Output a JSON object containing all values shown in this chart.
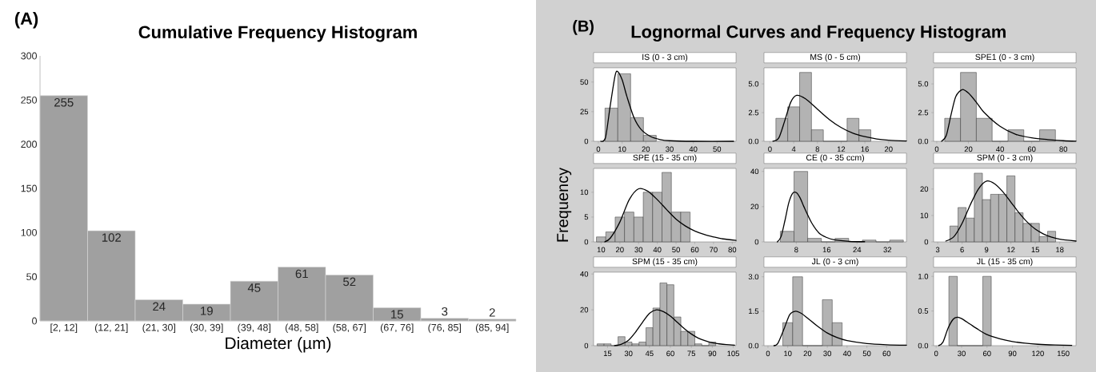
{
  "chart_data": [
    {
      "type": "bar",
      "title": "Cumulative Frequency Histogram",
      "annotations": [
        "(A)"
      ],
      "xlabel": "Diameter (µm)",
      "categories": [
        "[2, 12]",
        "(12, 21]",
        "(21, 30]",
        "(30, 39]",
        "(39, 48]",
        "(48, 58]",
        "(58, 67]",
        "(67, 76]",
        "(76, 85]",
        "(85, 94]"
      ],
      "values": [
        255,
        102,
        24,
        19,
        45,
        61,
        52,
        15,
        3,
        2
      ],
      "color": "#a0a0a0",
      "data_labels": true,
      "ylim": [
        0,
        300
      ],
      "yticks": [
        0,
        50,
        100,
        150,
        200,
        250,
        300
      ]
    },
    {
      "type": "histogram",
      "title": "IS (0 - 3 cm)",
      "annotations": [
        "(B)",
        "Lognormal Curves and Frequency Histogram"
      ],
      "bins": [
        2.8,
        8.2,
        13.6,
        19,
        24.4
      ],
      "series": [
        {
          "type": "histogram",
          "color": "#b3b3b3",
          "values": [
            28,
            57,
            20,
            5
          ]
        },
        {
          "type": "line",
          "color": "#000000",
          "x": [
            1,
            3,
            5,
            7,
            8,
            10,
            12,
            15,
            18,
            22,
            26,
            30,
            40,
            57
          ],
          "values": [
            0,
            3,
            30,
            55,
            59,
            52,
            38,
            20,
            10,
            4,
            1.5,
            0.5,
            0,
            0
          ]
        }
      ],
      "xlim": [
        -2,
        58
      ],
      "xticks": [
        0,
        10,
        20,
        30,
        40,
        50
      ],
      "ylim": [
        0,
        62
      ],
      "yticks": [
        0,
        25,
        50
      ]
    },
    {
      "type": "histogram",
      "title": "MS (0 - 5 cm)",
      "bins": [
        1,
        3,
        5,
        7,
        9,
        11,
        13,
        15,
        17
      ],
      "series": [
        {
          "type": "histogram",
          "color": "#b3b3b3",
          "values": [
            2,
            3,
            6,
            1,
            0,
            0,
            2,
            1
          ]
        },
        {
          "type": "line",
          "color": "#000000",
          "x": [
            0.5,
            1.5,
            2.5,
            3.5,
            4.5,
            6,
            8,
            10,
            12,
            14,
            16,
            18,
            20,
            23
          ],
          "values": [
            0,
            0.3,
            1.8,
            3.4,
            4.0,
            3.7,
            2.8,
            1.9,
            1.2,
            0.7,
            0.4,
            0.2,
            0.1,
            0.03
          ]
        }
      ],
      "xlim": [
        -1,
        23
      ],
      "xticks": [
        0,
        4,
        8,
        12,
        16,
        20
      ],
      "ylim": [
        0,
        6.4
      ],
      "yticks": [
        {
          "value": 0,
          "label": "0.0"
        },
        {
          "value": 2.5,
          "label": "2.5"
        },
        {
          "value": 5,
          "label": "5.0"
        }
      ]
    },
    {
      "type": "histogram",
      "title": "SPE1 (0 - 3 cm)",
      "bins": [
        5,
        15,
        25,
        35,
        45,
        55,
        65,
        75
      ],
      "series": [
        {
          "type": "histogram",
          "color": "#b3b3b3",
          "values": [
            2,
            6,
            2,
            0,
            1,
            0,
            1
          ]
        },
        {
          "type": "line",
          "color": "#000000",
          "x": [
            3,
            6,
            9,
            12,
            16,
            20,
            25,
            30,
            40,
            50,
            60,
            70,
            80,
            88
          ],
          "values": [
            0,
            0.5,
            2.3,
            3.9,
            4.5,
            4.2,
            3.4,
            2.5,
            1.3,
            0.6,
            0.3,
            0.15,
            0.05,
            0.01
          ]
        }
      ],
      "xlim": [
        -2,
        88
      ],
      "xticks": [
        0,
        20,
        40,
        60,
        80
      ],
      "ylim": [
        0,
        6.4
      ],
      "yticks": [
        {
          "value": 0,
          "label": "0.0"
        },
        {
          "value": 2.5,
          "label": "2.5"
        },
        {
          "value": 5,
          "label": "5.0"
        }
      ]
    },
    {
      "type": "histogram",
      "title": "SPE (15 - 35 cm)",
      "ylabel": "Frequency",
      "bins": [
        7.5,
        12.5,
        17.5,
        22.5,
        27.5,
        32.5,
        37.5,
        42.5,
        47.5,
        52.5,
        57.5
      ],
      "series": [
        {
          "type": "histogram",
          "color": "#b3b3b3",
          "values": [
            1,
            2,
            5,
            6,
            5,
            10,
            10,
            14,
            6,
            6
          ]
        },
        {
          "type": "line",
          "color": "#000000",
          "x": [
            12,
            15,
            20,
            25,
            30,
            35,
            40,
            45,
            50,
            55,
            60,
            65,
            70,
            75,
            82
          ],
          "values": [
            0,
            0.8,
            4,
            8.5,
            10.7,
            10.2,
            8.5,
            6.5,
            4.6,
            3.2,
            2.2,
            1.5,
            1,
            0.6,
            0.3
          ]
        }
      ],
      "xlim": [
        6,
        82
      ],
      "xticks": [
        10,
        20,
        30,
        40,
        50,
        60,
        70,
        80
      ],
      "ylim": [
        0,
        14.8
      ],
      "yticks": [
        0,
        5,
        10
      ]
    },
    {
      "type": "histogram",
      "title": "CE (0 - 35 ccm)",
      "bins": [
        3.8,
        7.4,
        11,
        14.6,
        18.2,
        21.8,
        25.4,
        29,
        32.6,
        36.2
      ],
      "series": [
        {
          "type": "histogram",
          "color": "#b3b3b3",
          "values": [
            6,
            40,
            2,
            0,
            2,
            0,
            1,
            0,
            1
          ]
        },
        {
          "type": "line",
          "color": "#000000",
          "x": [
            3,
            4,
            5,
            6,
            7,
            8,
            9,
            10,
            12,
            14,
            16,
            18,
            22,
            26
          ],
          "values": [
            0,
            3,
            12,
            22,
            27.5,
            28,
            25,
            20,
            11,
            5,
            2.5,
            1.2,
            0.3,
            0.1
          ]
        }
      ],
      "xlim": [
        -0.5,
        37
      ],
      "xticks": [
        8,
        16,
        24,
        32
      ],
      "ylim": [
        0,
        41.7
      ],
      "yticks": [
        0,
        20,
        40
      ]
    },
    {
      "type": "histogram",
      "title": "SPM (0 - 3 cm)",
      "bins": [
        4.5,
        5.5,
        6.5,
        7.5,
        8.5,
        9.5,
        10.5,
        11.5,
        12.5,
        13.5,
        14.5,
        15.5,
        16.5,
        17.5
      ],
      "series": [
        {
          "type": "histogram",
          "color": "#b3b3b3",
          "values": [
            6,
            13,
            9,
            26,
            16,
            18,
            18,
            25,
            11,
            7,
            7,
            2,
            4
          ]
        },
        {
          "type": "line",
          "color": "#000000",
          "x": [
            4,
            5,
            6,
            7,
            8,
            9,
            10,
            11,
            12,
            13,
            14,
            15,
            16,
            17,
            18,
            20
          ],
          "values": [
            0.3,
            2,
            7,
            14,
            20,
            23,
            22,
            19,
            15,
            11,
            7.5,
            4.8,
            3,
            1.8,
            1,
            0.3
          ]
        }
      ],
      "xlim": [
        2.5,
        20
      ],
      "xticks": [
        3,
        6,
        9,
        12,
        15,
        18
      ],
      "ylim": [
        0,
        27.8
      ],
      "yticks": [
        0,
        10,
        20
      ]
    },
    {
      "type": "histogram",
      "title": "SPM (15 - 35 cm)",
      "bins": [
        7.5,
        12.5,
        17.5,
        22.5,
        27.5,
        32.5,
        37.5,
        42.5,
        47.5,
        52.5,
        57.5,
        62.5,
        67.5,
        72.5,
        77.5,
        82.5,
        87.5,
        92.5
      ],
      "series": [
        {
          "type": "histogram",
          "color": "#b3b3b3",
          "values": [
            1,
            1,
            0,
            5,
            2,
            1,
            2,
            10,
            21,
            35,
            34,
            16,
            8,
            8,
            1,
            0,
            2
          ]
        },
        {
          "type": "line",
          "color": "#000000",
          "x": [
            20,
            25,
            30,
            35,
            40,
            45,
            50,
            55,
            60,
            65,
            70,
            75,
            80,
            85,
            90,
            95,
            100,
            106
          ],
          "values": [
            0,
            0.8,
            3,
            7.5,
            13,
            18,
            20,
            19,
            16.5,
            13,
            9.5,
            6.5,
            4.2,
            2.7,
            1.6,
            1,
            0.6,
            0.3
          ]
        }
      ],
      "xlim": [
        5,
        107
      ],
      "xticks": [
        15,
        30,
        45,
        60,
        75,
        90,
        105
      ],
      "ylim": [
        0,
        41
      ],
      "yticks": [
        0,
        20,
        40
      ]
    },
    {
      "type": "histogram",
      "title": "JL (0 - 3 cm)",
      "bins": [
        7.5,
        12.5,
        17.5,
        22.5,
        27.5,
        32.5,
        37.5
      ],
      "series": [
        {
          "type": "histogram",
          "color": "#b3b3b3",
          "values": [
            1,
            3,
            0,
            0,
            2,
            1
          ]
        },
        {
          "type": "line",
          "color": "#000000",
          "x": [
            3,
            5,
            8,
            11,
            14,
            17,
            20,
            25,
            30,
            35,
            40,
            50,
            60,
            70
          ],
          "values": [
            0,
            0.1,
            0.7,
            1.35,
            1.5,
            1.4,
            1.2,
            0.85,
            0.55,
            0.35,
            0.22,
            0.09,
            0.04,
            0.02
          ]
        }
      ],
      "xlim": [
        -2,
        70
      ],
      "xticks": [
        0,
        10,
        20,
        30,
        40,
        50,
        60
      ],
      "ylim": [
        0,
        3.2
      ],
      "yticks": [
        {
          "value": 0,
          "label": "0.0"
        },
        {
          "value": 1.5,
          "label": "1.5"
        },
        {
          "value": 3,
          "label": "3.0"
        }
      ]
    },
    {
      "type": "histogram",
      "title": "JL (15 - 35 cm)",
      "bins": [
        15,
        25,
        35,
        45,
        55,
        65
      ],
      "series": [
        {
          "type": "histogram",
          "color": "#b3b3b3",
          "values": [
            1,
            0,
            0,
            0,
            1
          ]
        },
        {
          "type": "line",
          "color": "#000000",
          "x": [
            3,
            8,
            14,
            20,
            25,
            30,
            40,
            50,
            60,
            75,
            90,
            105,
            120,
            140,
            160
          ],
          "values": [
            0,
            0.05,
            0.25,
            0.38,
            0.41,
            0.39,
            0.31,
            0.23,
            0.16,
            0.1,
            0.06,
            0.035,
            0.02,
            0.01,
            0.005
          ]
        }
      ],
      "xlim": [
        -3,
        165
      ],
      "xticks": [
        0,
        30,
        60,
        90,
        120,
        150
      ],
      "ylim": [
        0,
        1.06
      ],
      "yticks": [
        {
          "value": 0,
          "label": "0.0"
        },
        {
          "value": 0.5,
          "label": "0.5"
        },
        {
          "value": 1,
          "label": "1.0"
        }
      ]
    }
  ]
}
